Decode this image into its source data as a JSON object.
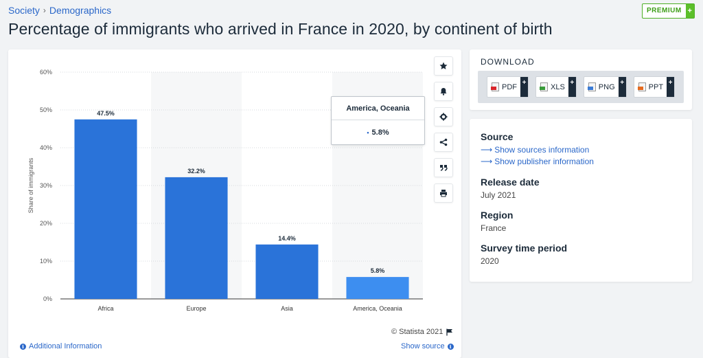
{
  "breadcrumb": {
    "items": [
      "Society",
      "Demographics"
    ],
    "separator": "›"
  },
  "premium": {
    "label": "PREMIUM",
    "plus": "+"
  },
  "title": "Percentage of immigrants who arrived in France in 2020, by continent of birth",
  "chart_data": {
    "type": "bar",
    "title": "",
    "categories": [
      "Africa",
      "Europe",
      "Asia",
      "America, Oceania"
    ],
    "values": [
      47.5,
      32.2,
      14.4,
      5.8
    ],
    "value_labels": [
      "47.5%",
      "32.2%",
      "14.4%",
      "5.8%"
    ],
    "xlabel": "",
    "ylabel": "Share of immigrants",
    "ylim": [
      0,
      60
    ],
    "yticks": [
      0,
      10,
      20,
      30,
      40,
      50,
      60
    ],
    "ytick_labels": [
      "0%",
      "10%",
      "20%",
      "30%",
      "40%",
      "50%",
      "60%"
    ],
    "grid": true,
    "colors": {
      "bar": "#2a73d9",
      "highlight": "#3d8ef0"
    },
    "highlighted_index": 3
  },
  "tooltip": {
    "title": "America, Oceania",
    "value": "5.8%",
    "dot": "•"
  },
  "toolbar": [
    "star-icon",
    "bell-icon",
    "gear-icon",
    "share-icon",
    "quote-icon",
    "print-icon"
  ],
  "footer": {
    "copyright": "© Statista 2021",
    "additional_info": "Additional Information",
    "show_source": "Show source",
    "info_glyph": "i"
  },
  "download": {
    "title": "DOWNLOAD",
    "plus": "+",
    "buttons": [
      {
        "label": "PDF",
        "color": "#d9262b"
      },
      {
        "label": "XLS",
        "color": "#3a9b3a"
      },
      {
        "label": "PNG",
        "color": "#3a7bd5"
      },
      {
        "label": "PPT",
        "color": "#e56b1f"
      }
    ]
  },
  "meta": {
    "source_heading": "Source",
    "arrow": "⟶",
    "sources_link": "Show sources information",
    "publisher_link": "Show publisher information",
    "release_heading": "Release date",
    "release_value": "July 2021",
    "region_heading": "Region",
    "region_value": "France",
    "survey_heading": "Survey time period",
    "survey_value": "2020"
  }
}
